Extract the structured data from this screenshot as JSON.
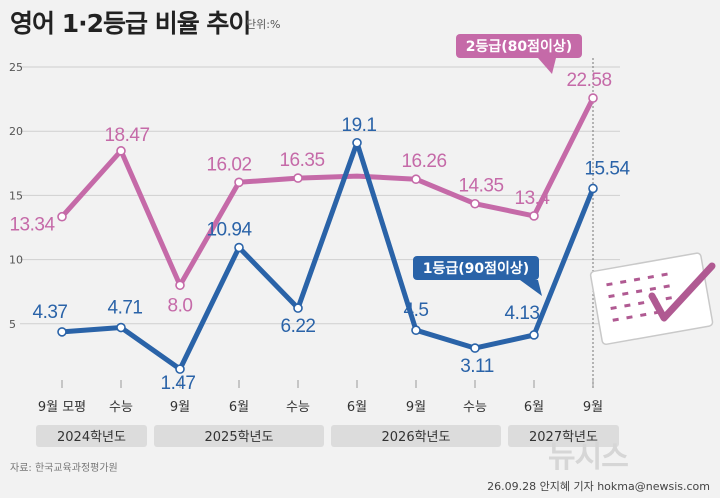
{
  "title": "영어 1·2등급 비율 추이",
  "unit": "단위:%",
  "source": "자료: 한국교육과정평가원",
  "credit": "26.09.28 안지혜 기자  hokma@newsis.com",
  "watermark": "뉴시스",
  "colors": {
    "grade1": "#2a63a8",
    "grade2": "#c56aa8",
    "grid": "#cfcfcf",
    "band": "#dcdcdc"
  },
  "chart_data": {
    "type": "line",
    "categories": [
      "9월 모평",
      "수능",
      "9월",
      "6월",
      "수능",
      "6월",
      "9월",
      "수능",
      "6월",
      "9월"
    ],
    "years": [
      {
        "label": "2024학년도",
        "span": [
          0,
          1
        ]
      },
      {
        "label": "2025학년도",
        "span": [
          2,
          4
        ]
      },
      {
        "label": "2026학년도",
        "span": [
          5,
          7
        ]
      },
      {
        "label": "2027학년도",
        "span": [
          8,
          9
        ]
      }
    ],
    "yticks": [
      5,
      10,
      15,
      20,
      25
    ],
    "ylim": [
      0,
      25
    ],
    "series": [
      {
        "name": "2등급(80점이상)",
        "values": [
          13.34,
          18.47,
          8.0,
          16.02,
          16.35,
          null,
          16.26,
          14.35,
          13.4,
          22.58
        ],
        "labels": [
          "13.34",
          "18.47",
          "8.0",
          "16.02",
          "16.35",
          "",
          "16.26",
          "14.35",
          "13.4",
          "22.58"
        ],
        "interp_gap": 16.5
      },
      {
        "name": "1등급(90점이상)",
        "values": [
          4.37,
          4.71,
          1.47,
          10.94,
          6.22,
          19.1,
          4.5,
          3.11,
          4.13,
          15.54
        ],
        "labels": [
          "4.37",
          "4.71",
          "1.47",
          "10.94",
          "6.22",
          "19.1",
          "4.5",
          "3.11",
          "4.13",
          "15.54"
        ]
      }
    ]
  }
}
